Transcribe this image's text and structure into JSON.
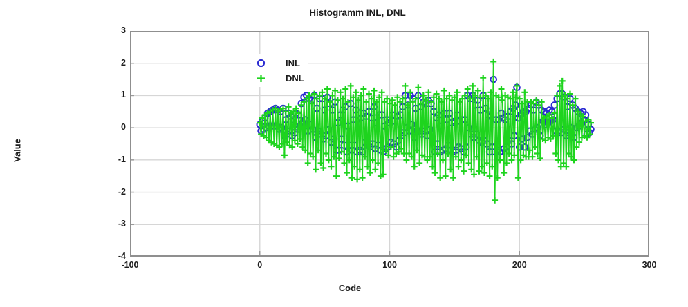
{
  "page": {
    "background": "#ffffff"
  },
  "chart_data": {
    "type": "scatter",
    "title": "Histogramm INL, DNL",
    "xlabel": "Code",
    "ylabel": "Value",
    "xlim": [
      -100,
      300
    ],
    "ylim": [
      -4,
      3
    ],
    "x_ticks": [
      -100,
      0,
      100,
      200,
      300
    ],
    "y_ticks": [
      3,
      2,
      1,
      0,
      -1,
      -2,
      -3,
      -4
    ],
    "grid": true,
    "legend_position": "inside-top-left",
    "colors": {
      "grid": "#d6d6d6",
      "border": "#8f8f8f",
      "tick": "#9a9a9a",
      "text": "#1c1c1c",
      "inl": "#2b2bd2",
      "dnl": "#1ed41e"
    },
    "code_start": 0,
    "code_step": 1,
    "series": [
      {
        "name": "INL",
        "marker": "circle",
        "color": "#2b2bd2",
        "line": false,
        "values": [
          0.1,
          -0.1,
          0.2,
          -0.05,
          0.3,
          0,
          0.45,
          0.05,
          0.5,
          0.05,
          0.55,
          0.05,
          0.6,
          0.05,
          0.55,
          -0.05,
          0.5,
          0,
          0.6,
          -0.25,
          0.25,
          -0.2,
          0.45,
          -0.1,
          0.35,
          -0.25,
          0.25,
          -0.15,
          0.45,
          -0.05,
          0.4,
          0.05,
          0.75,
          0.15,
          0.95,
          0.25,
          1.0,
          -0.1,
          0.9,
          0.1,
          0.85,
          -0.05,
          1.0,
          -0.3,
          0.6,
          -0.1,
          0.9,
          -0.2,
          0.9,
          -0.35,
          0.55,
          -0.25,
          0.95,
          -0.05,
          0.75,
          -0.45,
          0.55,
          -0.35,
          0.8,
          -0.7,
          0.15,
          -0.7,
          0.4,
          -0.35,
          0.55,
          -0.55,
          0.65,
          -0.75,
          0.05,
          -0.55,
          0.75,
          -0.7,
          0.25,
          -0.55,
          0.55,
          -0.75,
          0.1,
          -0.7,
          0.3,
          -0.75,
          0.45,
          -0.45,
          0.35,
          -0.55,
          0.5,
          -0.6,
          0.3,
          -0.5,
          0.65,
          -0.65,
          0.15,
          -0.55,
          0.4,
          -0.7,
          0.4,
          -0.75,
          0.05,
          -0.65,
          0.25,
          -0.6,
          0.15,
          -0.45,
          0.4,
          -0.5,
          0.2,
          -0.6,
          0.35,
          -0.4,
          0.4,
          -0.25,
          0.65,
          -0.15,
          1.0,
          0,
          0.7,
          -0.1,
          1.0,
          0.1,
          0.9,
          -0.3,
          0.6,
          -0.1,
          1.0,
          -0.1,
          0.65,
          -0.2,
          0.8,
          -0.1,
          0.75,
          -0.25,
          0.85,
          -0.05,
          0.75,
          -0.45,
          0.5,
          -0.75,
          0.3,
          -0.5,
          0.4,
          -0.75,
          0.05,
          -0.7,
          0.45,
          -0.65,
          0.25,
          -0.55,
          0.45,
          -0.7,
          0.15,
          -0.75,
          0.2,
          -0.7,
          0.4,
          -0.6,
          0.2,
          -0.65,
          0.25,
          -0.75,
          0.25,
          -0.6,
          1.0,
          0,
          0.9,
          -0.2,
          1.0,
          -0.3,
          0.7,
          -0.2,
          0.85,
          -0.4,
          0.55,
          -0.45,
          1.0,
          -0.4,
          0.6,
          -0.5,
          0.4,
          -0.75,
          0.35,
          -0.6,
          1.5,
          -0.75,
          0.25,
          -0.7,
          0.25,
          -0.75,
          0.45,
          0.3,
          -0.65,
          0.25,
          -0.6,
          0.35,
          -0.4,
          0.5,
          -0.5,
          0.6,
          -0.25,
          0.7,
          1.25,
          0.3,
          -0.6,
          0.4,
          -0.35,
          0.5,
          -0.6,
          0.5,
          -0.3,
          0.6,
          -0.1,
          0.7,
          -0.2,
          0.55,
          -0.05,
          0.8,
          0,
          0.7,
          -0.25,
          0.55,
          0.2,
          0.5,
          0.1,
          0.45,
          0.15,
          0.55,
          0.2,
          0.5,
          0.25,
          0.7,
          -0.1,
          0.9,
          -0.1,
          1.05,
          -0.15,
          1.05,
          -0.05,
          0.95,
          -0.25,
          0.65,
          -0.15,
          0.9,
          0,
          0.7,
          -0.3,
          0.6,
          0,
          0.5,
          0.05,
          0.45,
          0.15,
          0.5,
          0.25,
          0.4,
          -0.2,
          0.1,
          -0.15,
          -0.05
        ]
      },
      {
        "name": "DNL",
        "marker": "plus",
        "color": "#1ed41e",
        "line": true,
        "values": [
          0.15,
          -0.2,
          0.3,
          -0.25,
          0.4,
          -0.3,
          0.45,
          -0.4,
          0.5,
          -0.45,
          0.55,
          -0.5,
          0.6,
          -0.55,
          0.5,
          -0.6,
          0.55,
          -0.5,
          0.6,
          -0.85,
          0.5,
          -0.45,
          0.65,
          -0.55,
          0.45,
          -0.6,
          0.5,
          -0.4,
          0.6,
          -0.5,
          0.45,
          -0.35,
          0.7,
          -0.6,
          0.8,
          -0.7,
          0.9,
          -1.1,
          1.0,
          -0.8,
          0.75,
          -0.9,
          1.05,
          -1.3,
          0.9,
          -0.7,
          1.0,
          -1.1,
          1.1,
          -1.25,
          0.9,
          -0.8,
          1.2,
          -1.0,
          0.8,
          -1.2,
          1.0,
          -0.9,
          1.15,
          -1.5,
          0.85,
          -0.95,
          1.1,
          -0.75,
          0.9,
          -1.1,
          1.2,
          -1.4,
          0.8,
          -1.0,
          1.3,
          -1.55,
          0.95,
          -1.2,
          1.1,
          -1.6,
          0.85,
          -1.3,
          1.0,
          -1.55,
          1.2,
          -0.9,
          0.8,
          -1.2,
          1.05,
          -1.4,
          0.9,
          -1.0,
          1.15,
          -1.3,
          0.8,
          -1.1,
          0.95,
          -1.5,
          1.1,
          -1.45,
          0.8,
          -0.7,
          0.9,
          -0.85,
          0.75,
          -0.6,
          0.85,
          -0.9,
          0.7,
          -0.8,
          0.95,
          -0.75,
          0.8,
          -0.65,
          0.9,
          -0.8,
          1.3,
          -1.0,
          0.7,
          -0.8,
          1.1,
          -0.9,
          0.8,
          -1.2,
          0.9,
          -0.7,
          1.25,
          -1.1,
          0.75,
          -0.85,
          1.0,
          -0.9,
          0.85,
          -1.0,
          1.1,
          -0.9,
          0.8,
          -1.2,
          0.95,
          -1.4,
          1.05,
          -0.8,
          0.9,
          -1.55,
          0.8,
          -1.0,
          1.15,
          -1.5,
          0.9,
          -0.8,
          1.0,
          -1.3,
          0.85,
          -1.55,
          0.95,
          -0.9,
          1.1,
          -1.2,
          0.8,
          -1.0,
          0.9,
          -1.35,
          1.0,
          -0.85,
          1.2,
          -1.1,
          0.9,
          -1.3,
          1.3,
          -1.45,
          1.0,
          -0.9,
          1.15,
          -1.35,
          0.95,
          -1.2,
          1.55,
          -1.4,
          1.0,
          -1.1,
          0.9,
          -1.5,
          1.1,
          -1.2,
          2.05,
          -2.25,
          1.0,
          -1.55,
          0.95,
          -1.0,
          1.2,
          0.85,
          -1.4,
          1.0,
          -1.1,
          0.95,
          -0.8,
          0.9,
          -1.0,
          1.1,
          -0.85,
          0.95,
          1.3,
          -1.55,
          0.9,
          -1.0,
          0.75,
          -0.85,
          1.1,
          -0.9,
          0.8,
          -0.9,
          -0.7,
          0.8,
          -0.9,
          0.75,
          -0.6,
          0.85,
          -0.8,
          0.7,
          -0.95,
          0.8,
          -0.35,
          0.3,
          -0.4,
          0.35,
          -0.3,
          0.4,
          -0.35,
          0.3,
          -0.25,
          0.45,
          -0.8,
          1.0,
          -1.0,
          1.3,
          -1.2,
          1.45,
          -1.1,
          1.0,
          -1.2,
          0.9,
          -0.8,
          1.05,
          -0.9,
          0.7,
          -1.0,
          0.9,
          -0.6,
          0.5,
          -0.45,
          0.4,
          -0.3,
          0.35,
          -0.25,
          0.2,
          -0.3,
          0.25,
          -0.2,
          0.15
        ]
      }
    ]
  }
}
